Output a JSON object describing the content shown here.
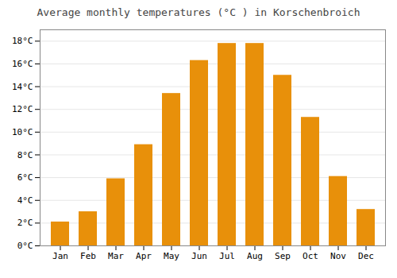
{
  "chart_data": {
    "type": "bar",
    "title": "Average monthly temperatures (°C ) in Korschenbroich",
    "categories": [
      "Jan",
      "Feb",
      "Mar",
      "Apr",
      "May",
      "Jun",
      "Jul",
      "Aug",
      "Sep",
      "Oct",
      "Nov",
      "Dec"
    ],
    "values": [
      2.1,
      3.0,
      5.9,
      8.9,
      13.4,
      16.3,
      17.8,
      17.8,
      15.0,
      11.3,
      6.1,
      3.2
    ],
    "color": "#E8900A",
    "ylim": [
      0,
      19
    ],
    "yticks": [
      {
        "value": 0,
        "label": "0°C"
      },
      {
        "value": 2,
        "label": "2°C"
      },
      {
        "value": 4,
        "label": "4°C"
      },
      {
        "value": 6,
        "label": "6°C"
      },
      {
        "value": 8,
        "label": "8°C"
      },
      {
        "value": 10,
        "label": "10°C"
      },
      {
        "value": 12,
        "label": "12°C"
      },
      {
        "value": 14,
        "label": "14°C"
      },
      {
        "value": 16,
        "label": "16°C"
      },
      {
        "value": 18,
        "label": "18°C"
      }
    ],
    "grid": true
  }
}
